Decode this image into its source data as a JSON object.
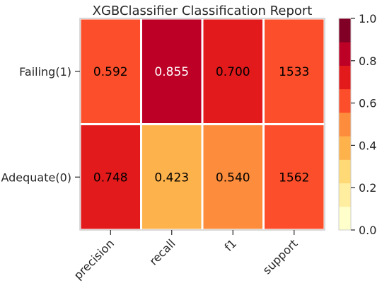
{
  "chart_data": {
    "type": "heatmap",
    "title": "XGBClassifier Classification Report",
    "xlabel": "",
    "ylabel": "",
    "columns": [
      "precision",
      "recall",
      "f1",
      "support"
    ],
    "rows": [
      "Failing(1)",
      "Adequate(0)"
    ],
    "values": [
      [
        0.592,
        0.855,
        0.7,
        0.636
      ],
      [
        0.748,
        0.423,
        0.54,
        0.648
      ]
    ],
    "labels": [
      [
        "0.592",
        "0.855",
        "0.700",
        "1533"
      ],
      [
        "0.748",
        "0.423",
        "0.540",
        "1562"
      ]
    ],
    "colorbar": {
      "ticks": [
        "0.0",
        "0.2",
        "0.4",
        "0.6",
        "0.8",
        "1.0"
      ],
      "range": [
        0,
        1
      ],
      "colors": [
        "#ffffcc",
        "#ffeda0",
        "#fed976",
        "#feb24c",
        "#fd8d3c",
        "#fc4e2a",
        "#e31a1c",
        "#bd0026",
        "#800026"
      ]
    },
    "grid": false
  }
}
